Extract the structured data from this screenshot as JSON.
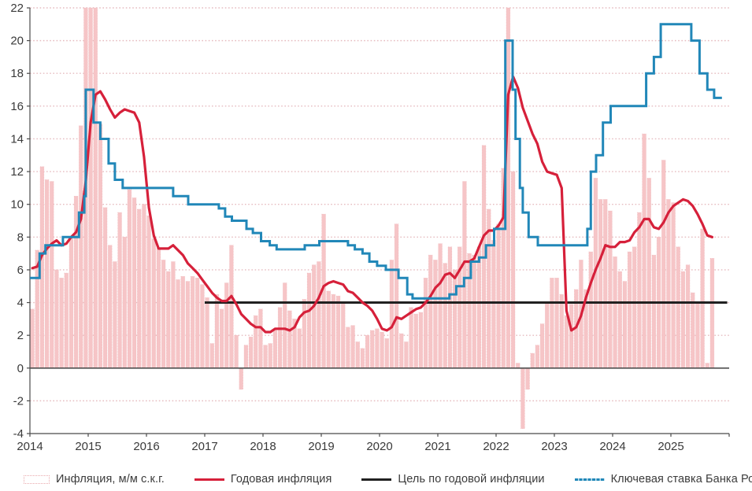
{
  "legend": {
    "items": [
      {
        "label": "Инфляция, м/м с.к.г.",
        "type": "bar",
        "color": "#f6c5c7"
      },
      {
        "label": "Годовая инфляция",
        "type": "line",
        "color": "#d6203a"
      },
      {
        "label": "Цель по годовой инфляции",
        "type": "line",
        "color": "#212121"
      },
      {
        "label": "Ключевая ставка Банка России",
        "type": "dash",
        "color": "#2187b8"
      }
    ]
  },
  "chart_data": {
    "type": "bar",
    "subtype": "combo: monthly bars + annual inflation line + flat target line + stepped key-rate line",
    "x_start": "2014-01",
    "x_end_bars": "2025-09",
    "xtick_labels": [
      "2014",
      "2015",
      "2016",
      "2017",
      "2018",
      "2019",
      "2020",
      "2021",
      "2022",
      "2023",
      "2024",
      "2025"
    ],
    "ylim": [
      -4,
      22
    ],
    "ytick_step": 2,
    "ytick_labels": [
      "-4",
      "-2",
      "0",
      "2",
      "4",
      "6",
      "8",
      "10",
      "12",
      "14",
      "16",
      "18",
      "20",
      "22"
    ],
    "grid": "horizontal dotted",
    "legend_position": "bottom",
    "colors": {
      "bars": "#f6c5c7",
      "bars_border": "#efb3b7",
      "annual_line": "#d6203a",
      "target_line": "#212121",
      "key_rate_line": "#2187b8",
      "grid": "#e6bcc0",
      "axis": "#4a4a4a",
      "labels": "#3a3a3a"
    },
    "series": [
      {
        "name": "Инфляция, м/м с.к.г.",
        "type": "bar",
        "note": "monthly SAAR %, Jan2014–Sep2025, clipped to ylim when drawn",
        "values": [
          3.6,
          7.2,
          12.3,
          11.5,
          11.4,
          6.0,
          5.5,
          5.8,
          8.0,
          10.5,
          14.8,
          30,
          28,
          24,
          14.9,
          9.8,
          7.5,
          6.5,
          9.5,
          8.0,
          10.9,
          10.4,
          9.7,
          10.0,
          9.3,
          7.9,
          7.3,
          6.6,
          5.9,
          6.5,
          5.4,
          5.6,
          5.3,
          5.6,
          5.5,
          5.1,
          4.3,
          1.5,
          4.5,
          3.6,
          5.2,
          7.5,
          2.0,
          -1.3,
          1.4,
          1.9,
          3.2,
          3.6,
          1.4,
          1.5,
          2.4,
          3.7,
          5.2,
          3.5,
          3.0,
          2.4,
          4.2,
          5.8,
          6.3,
          6.5,
          9.4,
          4.7,
          4.5,
          4.4,
          4.0,
          2.5,
          2.6,
          1.6,
          1.2,
          2.0,
          2.3,
          2.4,
          2.2,
          1.8,
          6.6,
          8.8,
          2.1,
          1.6,
          3.7,
          3.3,
          3.4,
          5.5,
          6.9,
          6.6,
          7.6,
          6.4,
          7.4,
          6.0,
          7.4,
          11.4,
          7.0,
          6.9,
          7.4,
          13.6,
          9.7,
          7.8,
          8.8,
          12.2,
          60,
          12.0,
          0.3,
          -3.7,
          -1.3,
          0.9,
          1.4,
          2.7,
          4.0,
          5.5,
          5.5,
          4.5,
          3.2,
          3.9,
          4.8,
          6.6,
          4.8,
          7.1,
          11.6,
          10.3,
          10.3,
          9.6,
          6.8,
          5.9,
          5.3,
          7.1,
          7.4,
          9.5,
          14.3,
          11.6,
          6.9,
          8.0,
          12.7,
          10.3,
          10.1,
          7.4,
          5.9,
          6.3,
          4.6,
          4.0,
          8.5,
          0.3,
          6.7
        ]
      },
      {
        "name": "Годовая инфляция",
        "type": "line",
        "note": "YoY %, Jan2014–Sep2025",
        "values": [
          6.1,
          6.2,
          6.9,
          7.3,
          7.6,
          7.8,
          7.5,
          7.6,
          8.0,
          8.3,
          9.1,
          11.4,
          15.0,
          16.7,
          16.9,
          16.4,
          15.8,
          15.3,
          15.6,
          15.8,
          15.7,
          15.6,
          15.0,
          12.9,
          9.8,
          8.1,
          7.3,
          7.3,
          7.3,
          7.5,
          7.2,
          6.9,
          6.4,
          6.1,
          5.8,
          5.4,
          5.0,
          4.6,
          4.3,
          4.1,
          4.1,
          4.4,
          3.9,
          3.3,
          3.0,
          2.7,
          2.5,
          2.5,
          2.2,
          2.2,
          2.4,
          2.4,
          2.4,
          2.3,
          2.5,
          3.1,
          3.4,
          3.5,
          3.8,
          4.3,
          5.0,
          5.2,
          5.3,
          5.2,
          5.1,
          4.7,
          4.6,
          4.3,
          4.0,
          3.8,
          3.5,
          3.0,
          2.4,
          2.3,
          2.5,
          3.1,
          3.0,
          3.2,
          3.4,
          3.6,
          3.7,
          4.0,
          4.4,
          4.9,
          5.2,
          5.7,
          5.8,
          5.5,
          6.0,
          6.5,
          6.5,
          6.7,
          7.4,
          8.1,
          8.4,
          8.4,
          8.7,
          9.2,
          16.7,
          17.8,
          17.1,
          15.9,
          15.1,
          14.3,
          13.7,
          12.6,
          12.0,
          11.9,
          11.8,
          11.0,
          3.5,
          2.3,
          2.5,
          3.2,
          4.3,
          5.2,
          6.0,
          6.7,
          7.5,
          7.4,
          7.4,
          7.7,
          7.7,
          7.8,
          8.3,
          8.6,
          9.1,
          9.1,
          8.6,
          8.5,
          8.9,
          9.5,
          9.9,
          10.1,
          10.3,
          10.2,
          9.9,
          9.4,
          8.8,
          8.1,
          8.0
        ]
      },
      {
        "name": "Цель по годовой инфляции",
        "type": "hline",
        "value": 4,
        "from_month": 36,
        "to_month": 143.6
      },
      {
        "name": "Ключевая ставка Банка России",
        "type": "step",
        "note": "[month index from Jan2014 (fractional), rate %]",
        "points": [
          [
            0,
            5.5
          ],
          [
            2.0,
            7.0
          ],
          [
            3.2,
            7.5
          ],
          [
            6.8,
            8.0
          ],
          [
            10.1,
            9.5
          ],
          [
            11.2,
            10.5
          ],
          [
            11.5,
            17
          ],
          [
            13.1,
            15
          ],
          [
            14.5,
            14
          ],
          [
            16.2,
            12.5
          ],
          [
            17.5,
            11.5
          ],
          [
            19.1,
            11
          ],
          [
            29.5,
            10.5
          ],
          [
            32.6,
            10
          ],
          [
            38.9,
            9.75
          ],
          [
            40.2,
            9.25
          ],
          [
            41.6,
            9.0
          ],
          [
            44.6,
            8.5
          ],
          [
            45.9,
            8.25
          ],
          [
            47.6,
            7.75
          ],
          [
            49.4,
            7.5
          ],
          [
            50.8,
            7.25
          ],
          [
            56.6,
            7.5
          ],
          [
            59.6,
            7.75
          ],
          [
            65.5,
            7.5
          ],
          [
            66.9,
            7.25
          ],
          [
            68.5,
            7.0
          ],
          [
            69.9,
            6.5
          ],
          [
            71.5,
            6.25
          ],
          [
            73.3,
            6.0
          ],
          [
            75.9,
            5.5
          ],
          [
            77.7,
            4.5
          ],
          [
            78.8,
            4.25
          ],
          [
            86.4,
            4.5
          ],
          [
            87.8,
            5.0
          ],
          [
            89.4,
            5.5
          ],
          [
            90.8,
            6.5
          ],
          [
            92.5,
            6.75
          ],
          [
            93.9,
            7.5
          ],
          [
            95.6,
            8.5
          ],
          [
            97.9,
            20
          ],
          [
            99.4,
            17
          ],
          [
            100.0,
            14
          ],
          [
            100.9,
            11
          ],
          [
            101.5,
            9.5
          ],
          [
            102.7,
            8.0
          ],
          [
            104.6,
            7.5
          ],
          [
            114.8,
            8.5
          ],
          [
            115.5,
            12
          ],
          [
            116.6,
            13
          ],
          [
            118.0,
            15
          ],
          [
            119.6,
            16
          ],
          [
            126.9,
            18
          ],
          [
            128.5,
            19
          ],
          [
            129.9,
            21
          ],
          [
            136.2,
            20
          ],
          [
            137.9,
            18
          ],
          [
            139.5,
            17
          ],
          [
            140.9,
            16.5
          ],
          [
            142.5,
            16.5
          ]
        ]
      }
    ]
  }
}
